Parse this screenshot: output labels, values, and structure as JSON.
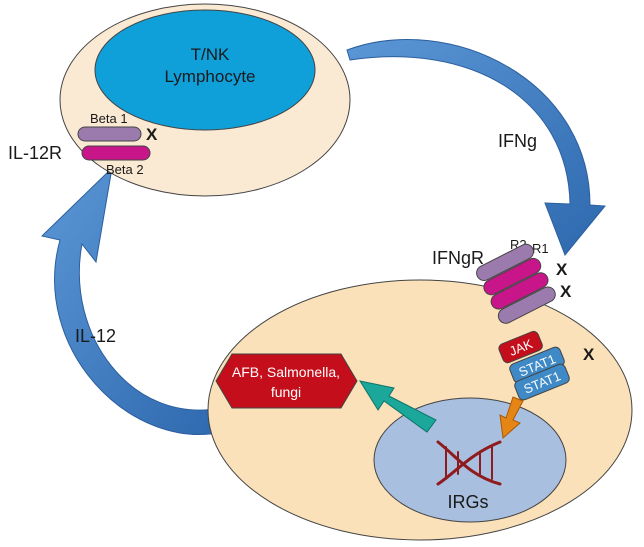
{
  "cell_top": {
    "label_line1": "T/NK",
    "label_line2": "Lymphocyte"
  },
  "receptor_il12": {
    "name": "IL-12R",
    "beta1": "Beta 1",
    "beta2": "Beta 2",
    "mutation_mark": "X"
  },
  "arrows": {
    "ifng": "IFNg",
    "il12": "IL-12"
  },
  "receptor_ifng": {
    "name": "IFNgR",
    "r2": "R2",
    "r1": "R1",
    "mark_r2": "X",
    "mark_r1": "X"
  },
  "signaling": {
    "jak": "JAK",
    "stat1_a": "STAT1",
    "stat1_b": "STAT1",
    "mark_stat": "X"
  },
  "nucleus": {
    "label": "IRGs"
  },
  "pathogens": {
    "line1": "AFB, Salmonella,",
    "line2": "fungi"
  },
  "colors": {
    "cell": "#FAE1B9",
    "lymph_nucleus": "#0FA0DA",
    "nucleus_blue": "#A9BFDF",
    "arrow_blue": "#3F7CC1",
    "purple": "#9B7BAE",
    "magenta": "#C8168A",
    "jak_red": "#C40E1B",
    "stat_blue": "#3E89C6",
    "teal": "#1BA79A",
    "orange": "#E48516",
    "dna": "#8E1C1F"
  }
}
